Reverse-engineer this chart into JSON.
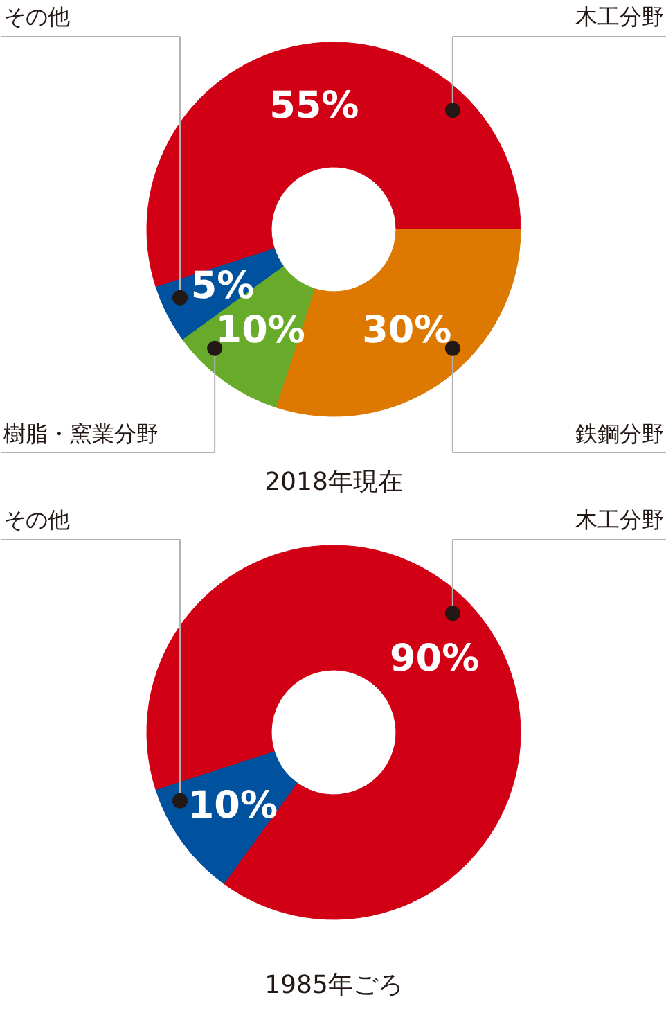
{
  "chart_data": [
    {
      "type": "donut",
      "title": "2018年現在",
      "categories": [
        "木工分野",
        "鉄鋼分野",
        "樹脂・窯業分野",
        "その他"
      ],
      "values": [
        55,
        30,
        10,
        5
      ],
      "colors": [
        "#d20014",
        "#dd7800",
        "#68ab2a",
        "#00519e"
      ],
      "value_labels": [
        "55%",
        "30%",
        "10%",
        "5%"
      ]
    },
    {
      "type": "donut",
      "title": "1985年ごろ",
      "categories": [
        "木工分野",
        "その他"
      ],
      "values": [
        90,
        10
      ],
      "colors": [
        "#d20014",
        "#00519e"
      ],
      "value_labels": [
        "90%",
        "10%"
      ]
    }
  ]
}
